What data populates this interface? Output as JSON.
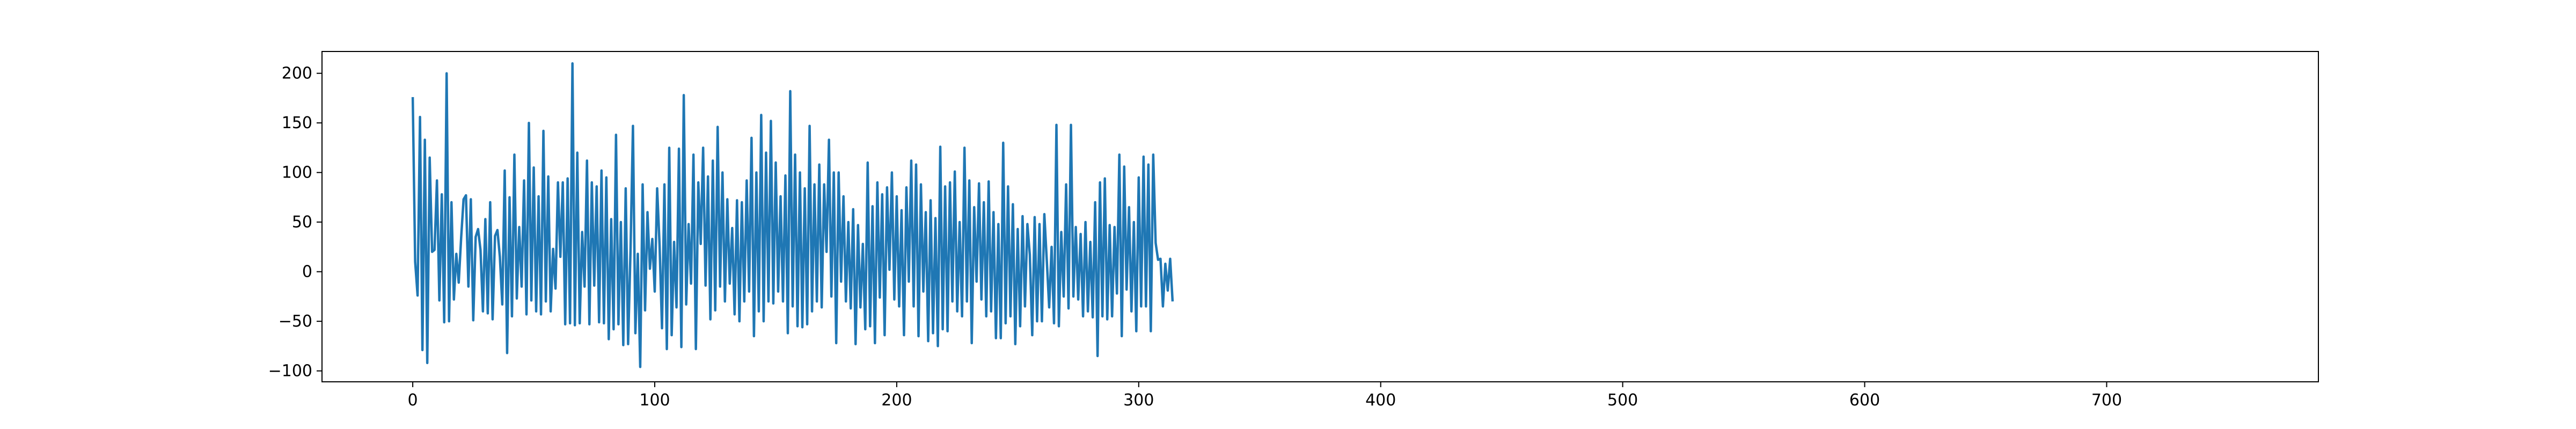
{
  "chart_data": {
    "type": "line",
    "title": "",
    "xlabel": "",
    "ylabel": "",
    "xlim": [
      -37.5,
      787.5
    ],
    "ylim": [
      -111,
      222
    ],
    "xticks": [
      0,
      100,
      200,
      300,
      400,
      500,
      600,
      700
    ],
    "yticks": [
      -100,
      -50,
      0,
      50,
      100,
      150,
      200
    ],
    "grid": false,
    "legend": "none",
    "colors": {
      "line": "#1f77b4",
      "axes": "#000000"
    },
    "series": [
      {
        "y": [
          176,
          10,
          -24,
          156,
          -79,
          133,
          -92,
          115,
          20,
          22,
          92,
          -29,
          78,
          -51,
          200,
          -50,
          70,
          -28,
          18,
          -11,
          34,
          73,
          77,
          -15,
          73,
          -49,
          35,
          43,
          22,
          -40,
          53,
          -42,
          70,
          -48,
          36,
          42,
          15,
          -33,
          102,
          -82,
          75,
          -45,
          118,
          -27,
          45,
          -15,
          92,
          -43,
          150,
          -29,
          105,
          -40,
          76,
          -43,
          142,
          -30,
          96,
          -40,
          23,
          -17,
          90,
          15,
          90,
          -53,
          94,
          -52,
          210,
          -54,
          120,
          -52,
          40,
          -15,
          112,
          -53,
          90,
          -14,
          86,
          -51,
          102,
          -52,
          95,
          -68,
          53,
          -58,
          138,
          -53,
          50,
          -74,
          84,
          -73,
          22,
          147,
          -62,
          18,
          -96,
          88,
          -39,
          60,
          3,
          33,
          -20,
          84,
          27,
          -57,
          88,
          -78,
          125,
          -64,
          30,
          -36,
          124,
          -76,
          178,
          -33,
          48,
          -12,
          118,
          -78,
          90,
          28,
          125,
          -14,
          96,
          -48,
          112,
          -39,
          146,
          -15,
          100,
          -30,
          73,
          -12,
          44,
          -43,
          72,
          -50,
          70,
          -30,
          92,
          -20,
          135,
          -65,
          100,
          -40,
          158,
          -50,
          120,
          -30,
          152,
          -32,
          110,
          -20,
          76,
          -30,
          97,
          -62,
          182,
          -35,
          118,
          -55,
          100,
          -56,
          84,
          -53,
          147,
          -40,
          88,
          -30,
          108,
          -36,
          88,
          20,
          133,
          -25,
          100,
          -72,
          100,
          -10,
          76,
          -30,
          50,
          -37,
          63,
          -73,
          47,
          -36,
          28,
          -58,
          110,
          -55,
          66,
          -72,
          90,
          -26,
          78,
          -64,
          85,
          2,
          100,
          -28,
          76,
          -35,
          62,
          -64,
          85,
          -10,
          112,
          -35,
          108,
          -65,
          88,
          -20,
          60,
          -70,
          72,
          -62,
          54,
          -75,
          126,
          -58,
          86,
          -60,
          90,
          -30,
          101,
          -40,
          50,
          -45,
          125,
          -30,
          92,
          -72,
          65,
          -10,
          89,
          -28,
          70,
          -45,
          91,
          -40,
          60,
          -67,
          48,
          -67,
          130,
          -52,
          86,
          -45,
          68,
          -73,
          43,
          -55,
          56,
          -35,
          48,
          17,
          -64,
          55,
          -50,
          48,
          -50,
          58,
          12,
          -36,
          25,
          -52,
          148,
          -55,
          40,
          -25,
          88,
          -37,
          148,
          -25,
          45,
          -28,
          38,
          -45,
          50,
          -40,
          30,
          -46,
          70,
          -85,
          90,
          -45,
          94,
          -48,
          47,
          -45,
          45,
          -22,
          118,
          -65,
          106,
          -18,
          65,
          -40,
          50,
          -60,
          95,
          -35,
          116,
          -35,
          108,
          -60,
          118,
          29,
          12,
          13,
          -35,
          8,
          -19,
          13,
          -30
        ]
      }
    ]
  }
}
